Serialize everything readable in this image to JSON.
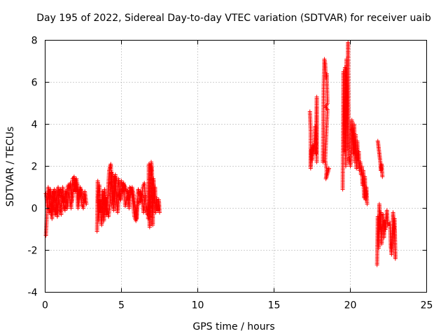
{
  "chart_data": {
    "type": "scatter",
    "title": "Day 195 of 2022, Sidereal Day-to-day VTEC variation (SDTVAR) for receiver uaib",
    "xlabel": "GPS time / hours",
    "ylabel": "SDTVAR / TECUs",
    "xlim": [
      0,
      25
    ],
    "ylim": [
      -4,
      8
    ],
    "xticks": [
      "0",
      "5",
      "10",
      "15",
      "20",
      "25"
    ],
    "yticks": [
      "-4",
      "-2",
      "0",
      "2",
      "4",
      "6",
      "8"
    ],
    "grid": true,
    "marker": "+",
    "color": "#ff0000",
    "series": [
      {
        "name": "SDTVAR",
        "segments": [
          [
            [
              0.05,
              -1.3
            ],
            [
              0.1,
              -0.5
            ],
            [
              0.15,
              0.5
            ],
            [
              0.2,
              1.0
            ],
            [
              0.3,
              0.4
            ],
            [
              0.4,
              -0.3
            ],
            [
              0.5,
              0.3
            ],
            [
              0.6,
              0.9
            ],
            [
              0.7,
              0.2
            ],
            [
              0.8,
              -0.4
            ],
            [
              0.9,
              0.5
            ],
            [
              1.0,
              0.9
            ],
            [
              1.1,
              0.6
            ],
            [
              1.2,
              0.2
            ],
            [
              1.3,
              -0.1
            ],
            [
              1.4,
              0.7
            ],
            [
              1.5,
              1.1
            ],
            [
              1.6,
              0.5
            ],
            [
              1.7,
              0.0
            ],
            [
              1.8,
              1.4
            ],
            [
              1.9,
              1.5
            ],
            [
              2.0,
              0.8
            ],
            [
              2.1,
              1.2
            ],
            [
              2.2,
              0.4
            ],
            [
              2.3,
              1.0
            ],
            [
              2.4,
              0.2
            ],
            [
              2.5,
              0.0
            ],
            [
              2.6,
              0.8
            ],
            [
              2.7,
              0.2
            ]
          ],
          [
            [
              0.05,
              0.7
            ],
            [
              0.15,
              0.2
            ],
            [
              0.25,
              -0.2
            ],
            [
              0.35,
              0.9
            ],
            [
              0.45,
              -0.5
            ],
            [
              0.55,
              0.8
            ],
            [
              0.65,
              -0.3
            ],
            [
              0.75,
              0.6
            ],
            [
              0.85,
              1.0
            ],
            [
              0.95,
              0.1
            ],
            [
              1.05,
              -0.3
            ],
            [
              1.15,
              1.0
            ],
            [
              1.25,
              0.3
            ],
            [
              1.35,
              0.8
            ],
            [
              1.45,
              0.0
            ],
            [
              1.55,
              0.9
            ],
            [
              1.65,
              1.2
            ],
            [
              1.75,
              0.3
            ],
            [
              1.85,
              0.9
            ],
            [
              1.95,
              1.3
            ],
            [
              2.05,
              1.4
            ],
            [
              2.15,
              0.0
            ],
            [
              2.25,
              0.6
            ],
            [
              2.35,
              0.9
            ],
            [
              2.45,
              0.5
            ],
            [
              2.55,
              0.3
            ]
          ],
          [
            [
              3.4,
              -1.1
            ],
            [
              3.45,
              1.3
            ],
            [
              3.5,
              -0.6
            ],
            [
              3.6,
              0.4
            ],
            [
              3.7,
              -0.8
            ],
            [
              3.8,
              0.2
            ],
            [
              3.9,
              0.9
            ],
            [
              4.0,
              -0.3
            ],
            [
              4.1,
              0.6
            ],
            [
              4.2,
              1.8
            ],
            [
              4.3,
              2.1
            ],
            [
              4.4,
              0.5
            ],
            [
              4.5,
              -0.1
            ],
            [
              4.6,
              1.6
            ],
            [
              4.7,
              0.2
            ],
            [
              4.8,
              1.4
            ],
            [
              4.9,
              0.6
            ],
            [
              5.0,
              1.3
            ],
            [
              5.1,
              0.8
            ],
            [
              5.2,
              1.1
            ],
            [
              5.3,
              0.9
            ],
            [
              5.4,
              0.7
            ],
            [
              5.5,
              0.0
            ],
            [
              5.6,
              0.8
            ],
            [
              5.7,
              1.0
            ],
            [
              5.8,
              0.6
            ],
            [
              5.9,
              0.0
            ],
            [
              6.0,
              -0.5
            ],
            [
              6.1,
              0.9
            ],
            [
              6.2,
              0.6
            ],
            [
              6.3,
              0.3
            ],
            [
              6.4,
              1.0
            ],
            [
              6.5,
              1.2
            ],
            [
              6.6,
              0.1
            ],
            [
              6.7,
              -0.3
            ]
          ],
          [
            [
              3.45,
              0.3
            ],
            [
              3.55,
              1.1
            ],
            [
              3.65,
              -0.2
            ],
            [
              3.75,
              0.8
            ],
            [
              3.85,
              -0.6
            ],
            [
              3.95,
              0.5
            ],
            [
              4.05,
              0.0
            ],
            [
              4.15,
              -0.4
            ],
            [
              4.25,
              0.2
            ],
            [
              4.35,
              1.7
            ],
            [
              4.45,
              0.3
            ],
            [
              4.55,
              1.5
            ],
            [
              4.65,
              0.9
            ],
            [
              4.75,
              -0.2
            ],
            [
              4.85,
              0.7
            ],
            [
              4.95,
              0.4
            ],
            [
              5.05,
              0.9
            ],
            [
              5.15,
              1.2
            ],
            [
              5.25,
              0.1
            ],
            [
              5.35,
              0.5
            ],
            [
              5.45,
              0.4
            ],
            [
              5.55,
              1.0
            ],
            [
              5.65,
              0.9
            ],
            [
              5.75,
              0.3
            ],
            [
              5.85,
              -0.4
            ],
            [
              5.95,
              -0.6
            ],
            [
              6.05,
              0.4
            ],
            [
              6.15,
              0.2
            ],
            [
              6.25,
              0.8
            ],
            [
              6.35,
              0.5
            ],
            [
              6.45,
              -0.2
            ],
            [
              6.55,
              0.6
            ]
          ],
          [
            [
              6.75,
              -0.5
            ],
            [
              6.8,
              2.1
            ],
            [
              6.85,
              -0.9
            ],
            [
              6.9,
              0.6
            ],
            [
              6.95,
              2.2
            ],
            [
              7.0,
              1.8
            ],
            [
              7.05,
              -0.8
            ],
            [
              7.1,
              1.4
            ],
            [
              7.15,
              0.3
            ],
            [
              7.2,
              1.0
            ],
            [
              7.25,
              -0.2
            ],
            [
              7.3,
              0.5
            ],
            [
              7.35,
              0.0
            ],
            [
              7.4,
              -0.1
            ],
            [
              7.45,
              0.4
            ],
            [
              7.5,
              -0.2
            ]
          ],
          [
            [
              17.35,
              4.6
            ],
            [
              17.4,
              3.7
            ],
            [
              17.4,
              1.9
            ],
            [
              17.45,
              2.8
            ],
            [
              17.5,
              2.3
            ],
            [
              17.55,
              3.0
            ],
            [
              17.6,
              2.6
            ],
            [
              17.7,
              3.9
            ],
            [
              17.75,
              2.6
            ],
            [
              17.8,
              5.3
            ],
            [
              17.8,
              2.2
            ]
          ],
          [
            [
              18.2,
              2.2
            ],
            [
              18.25,
              5.7
            ],
            [
              18.3,
              7.1
            ],
            [
              18.35,
              6.9
            ],
            [
              18.4,
              6.2
            ],
            [
              18.45,
              6.4
            ],
            [
              18.5,
              5.0
            ],
            [
              18.4,
              4.8
            ],
            [
              18.5,
              4.7
            ],
            [
              18.35,
              2.3
            ],
            [
              18.45,
              1.8
            ],
            [
              18.4,
              1.4
            ],
            [
              18.6,
              1.9
            ]
          ],
          [
            [
              19.5,
              0.9
            ],
            [
              19.55,
              6.5
            ],
            [
              19.6,
              2.7
            ],
            [
              19.65,
              6.7
            ],
            [
              19.7,
              2.0
            ],
            [
              19.75,
              7.1
            ],
            [
              19.8,
              2.8
            ],
            [
              19.85,
              7.9
            ],
            [
              19.9,
              2.2
            ],
            [
              19.95,
              2.4
            ],
            [
              20.0,
              2.0
            ],
            [
              20.05,
              2.4
            ],
            [
              20.1,
              4.2
            ],
            [
              20.15,
              3.6
            ],
            [
              20.2,
              2.6
            ],
            [
              20.25,
              4.0
            ],
            [
              20.3,
              2.2
            ],
            [
              20.35,
              3.5
            ],
            [
              20.4,
              1.9
            ],
            [
              20.45,
              3.2
            ],
            [
              20.5,
              2.3
            ],
            [
              20.55,
              2.7
            ],
            [
              20.6,
              1.8
            ],
            [
              20.65,
              2.2
            ],
            [
              20.7,
              1.6
            ],
            [
              20.75,
              2.0
            ],
            [
              20.8,
              1.1
            ],
            [
              20.85,
              1.8
            ],
            [
              20.9,
              0.5
            ],
            [
              20.95,
              1.5
            ],
            [
              21.0,
              0.4
            ],
            [
              21.05,
              1.0
            ],
            [
              21.1,
              0.2
            ]
          ],
          [
            [
              21.75,
              -2.7
            ],
            [
              21.8,
              -0.4
            ],
            [
              21.85,
              -1.9
            ],
            [
              21.9,
              0.2
            ],
            [
              21.95,
              -1.0
            ],
            [
              22.0,
              -0.2
            ],
            [
              22.05,
              -1.7
            ],
            [
              22.1,
              -0.9
            ],
            [
              22.15,
              -0.3
            ],
            [
              22.2,
              -1.4
            ],
            [
              22.25,
              -0.6
            ],
            [
              22.3,
              -1.0
            ],
            [
              22.35,
              -0.5
            ],
            [
              22.4,
              -0.1
            ],
            [
              22.45,
              -0.8
            ]
          ],
          [
            [
              21.8,
              3.2
            ],
            [
              21.85,
              2.9
            ],
            [
              21.9,
              2.6
            ],
            [
              21.95,
              2.3
            ],
            [
              22.0,
              1.8
            ],
            [
              22.05,
              2.1
            ],
            [
              22.1,
              1.5
            ]
          ],
          [
            [
              22.6,
              -0.7
            ],
            [
              22.65,
              -1.8
            ],
            [
              22.7,
              -2.2
            ],
            [
              22.75,
              -1.2
            ],
            [
              22.8,
              -0.2
            ],
            [
              22.85,
              -0.9
            ],
            [
              22.9,
              -1.1
            ],
            [
              22.95,
              -2.4
            ],
            [
              22.9,
              -0.5
            ]
          ]
        ]
      }
    ]
  }
}
